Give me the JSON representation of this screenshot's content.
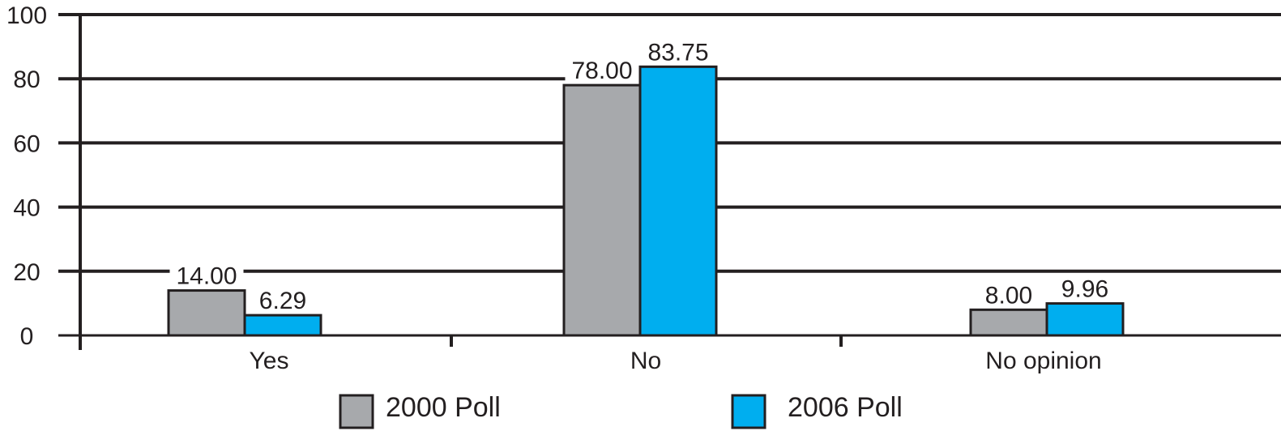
{
  "chart_data": {
    "type": "bar",
    "categories": [
      "Yes",
      "No",
      "No opinion"
    ],
    "series": [
      {
        "name": "2000 Poll",
        "values": [
          14.0,
          78.0,
          8.0
        ],
        "labels": [
          "14.00",
          "78.00",
          "8.00"
        ],
        "color": "#a7a9ac"
      },
      {
        "name": "2006 Poll",
        "values": [
          6.29,
          83.75,
          9.96
        ],
        "labels": [
          "6.29",
          "83.75",
          "9.96"
        ],
        "color": "#00aeef"
      }
    ],
    "title": "",
    "xlabel": "",
    "ylabel": "",
    "ylim": [
      0,
      100
    ],
    "yticks": [
      "0",
      "20",
      "40",
      "60",
      "80",
      "100"
    ],
    "grid": true,
    "legend_position": "bottom"
  }
}
